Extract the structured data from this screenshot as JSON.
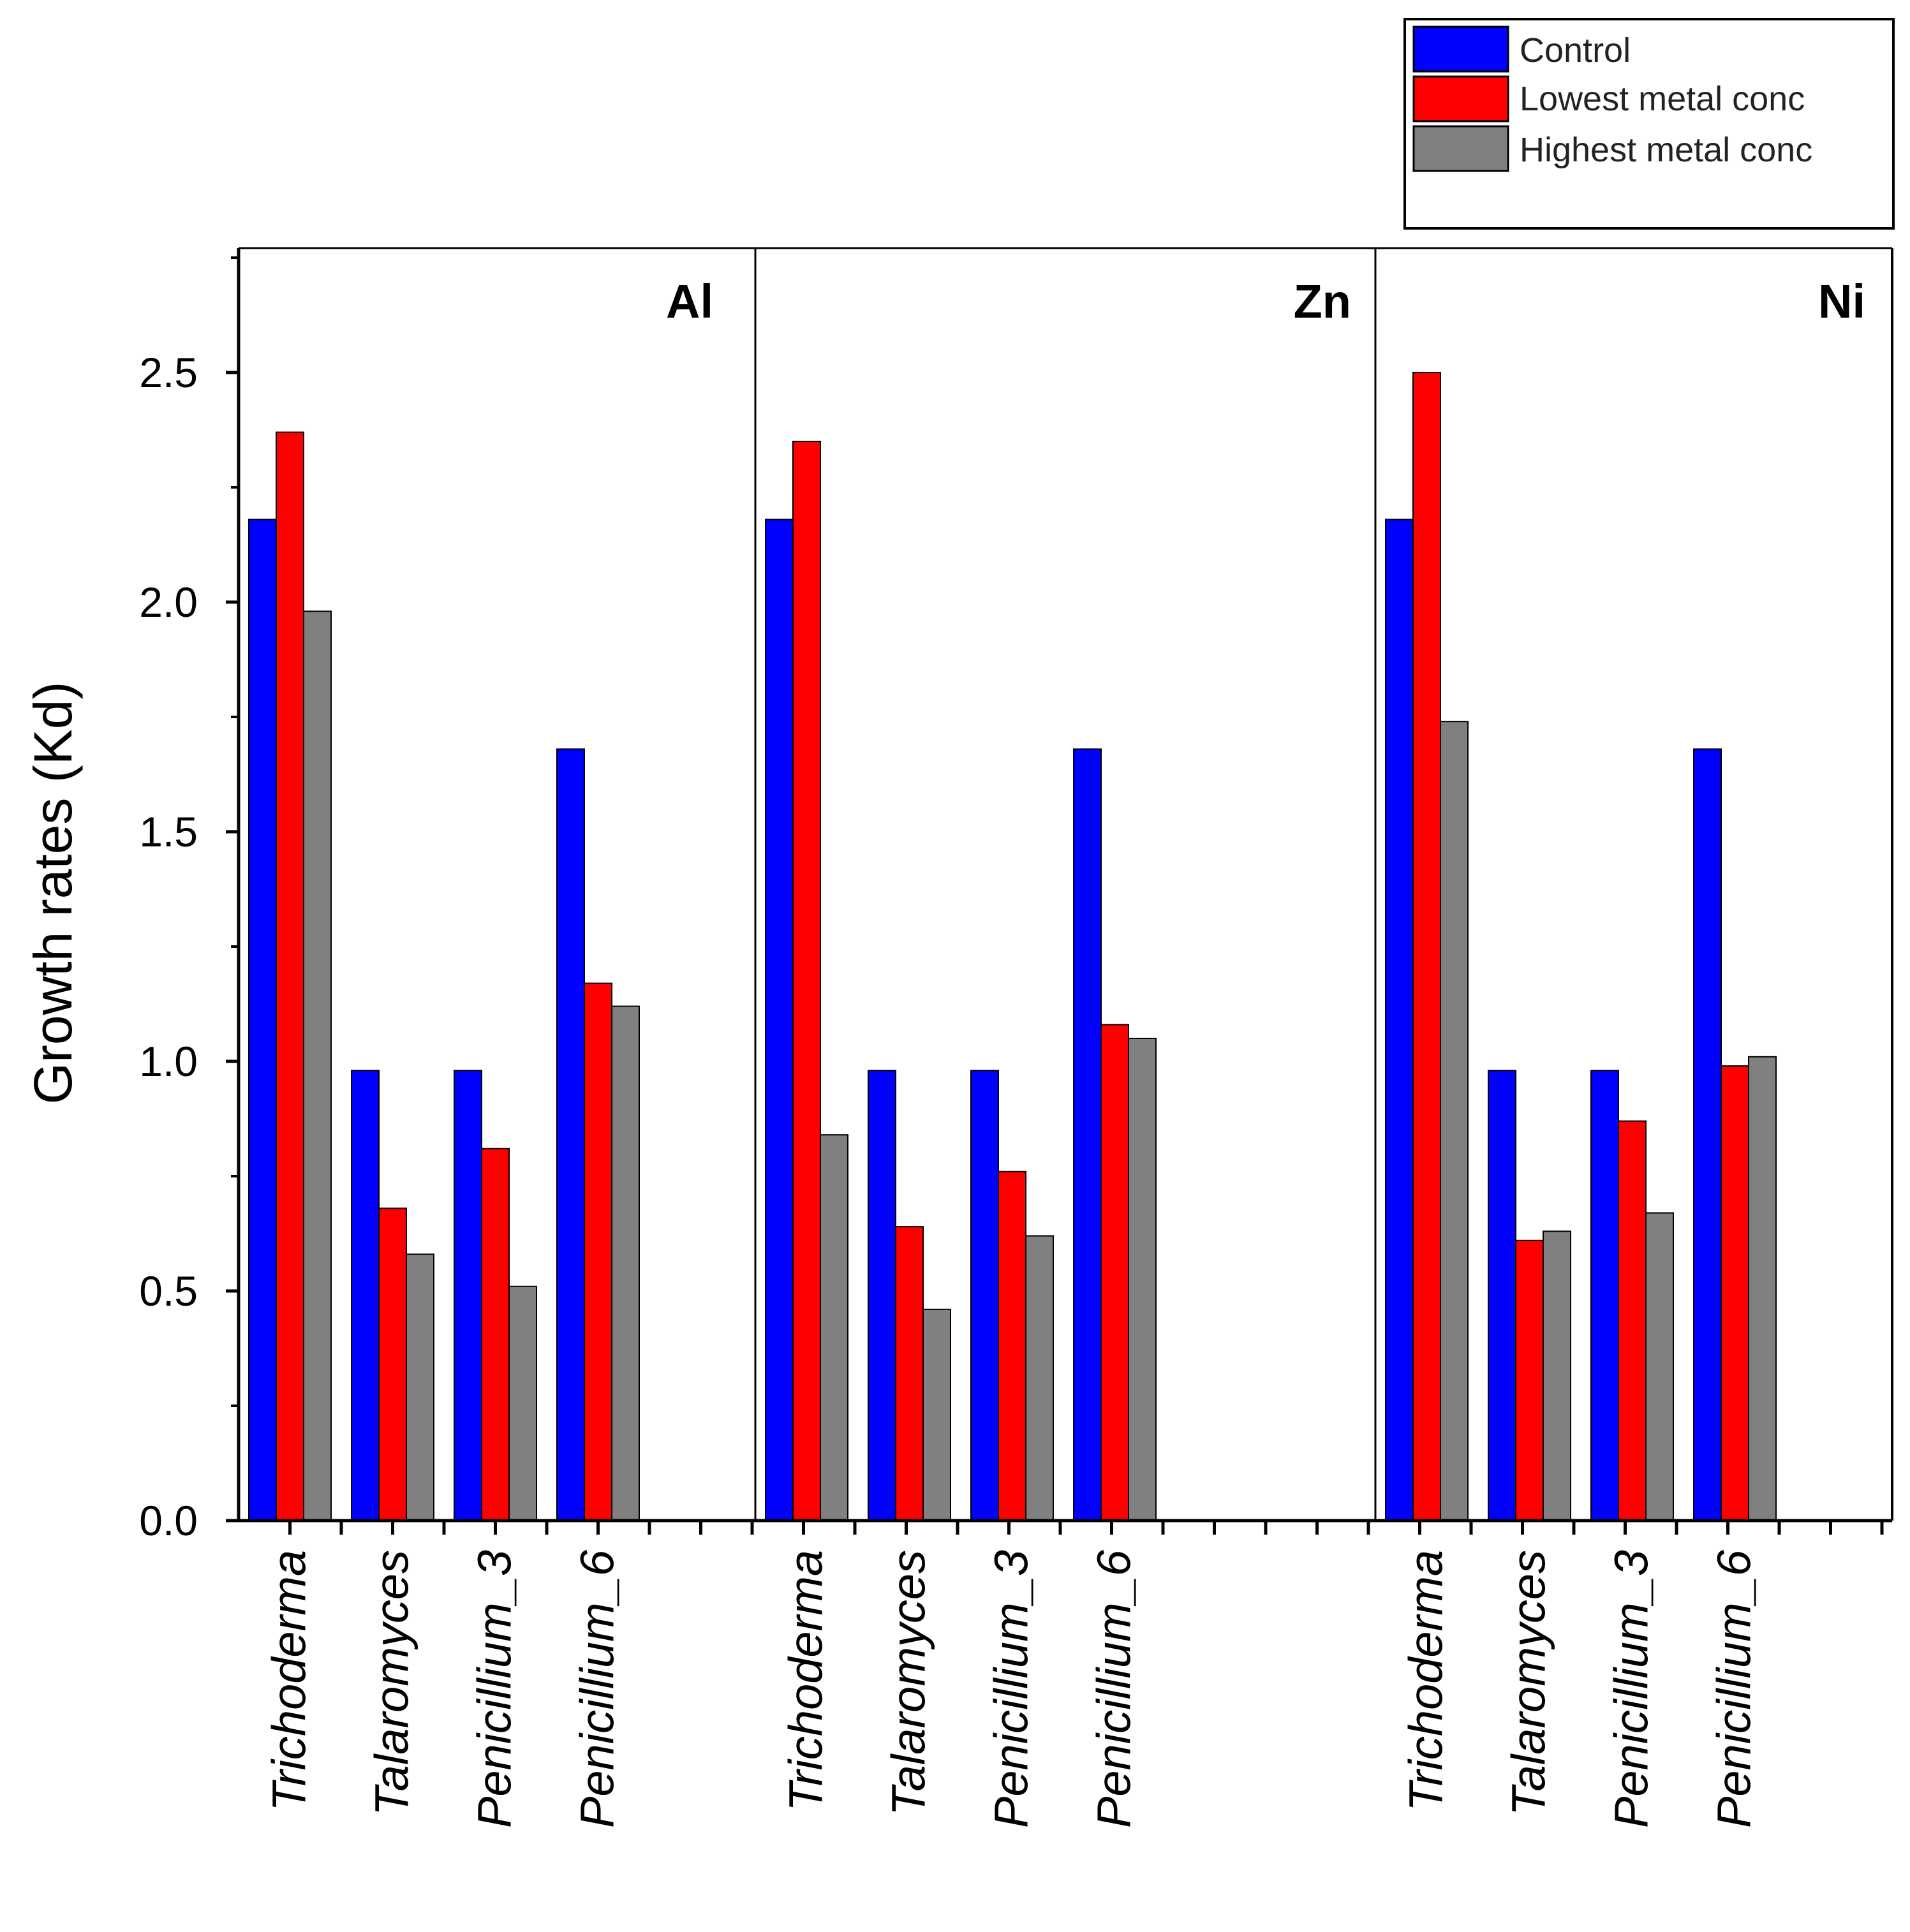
{
  "chart_data": {
    "type": "bar",
    "ylabel": "Growth rates (Kd)",
    "ylim": [
      0,
      2.75
    ],
    "yticks": [
      0.0,
      0.5,
      1.0,
      1.5,
      2.0,
      2.5
    ],
    "ytick_labels": [
      "0.0",
      "0.5",
      "1.0",
      "1.5",
      "2.0",
      "2.5"
    ],
    "grid": false,
    "legend_position": "top-right, above plot",
    "legend": [
      {
        "name": "Control",
        "color": "#0000ff"
      },
      {
        "name": "Lowest metal conc",
        "color": "#ff0000"
      },
      {
        "name": "Highest metal conc",
        "color": "#808080"
      }
    ],
    "panels": [
      {
        "label": "Al",
        "categories": [
          "Trichoderma",
          "Talaromyces",
          "Penicillium_3",
          "Penicillium_6"
        ],
        "series": [
          {
            "name": "Control",
            "values": [
              2.18,
              0.98,
              0.98,
              1.68
            ]
          },
          {
            "name": "Lowest metal conc",
            "values": [
              2.37,
              0.68,
              0.81,
              1.17
            ]
          },
          {
            "name": "Highest metal conc",
            "values": [
              1.98,
              0.58,
              0.51,
              1.12
            ]
          }
        ]
      },
      {
        "label": "Zn",
        "categories": [
          "Trichoderma",
          "Talaromyces",
          "Penicillium_3",
          "Penicillium_6"
        ],
        "series": [
          {
            "name": "Control",
            "values": [
              2.18,
              0.98,
              0.98,
              1.68
            ]
          },
          {
            "name": "Lowest metal conc",
            "values": [
              2.35,
              0.64,
              0.76,
              1.08
            ]
          },
          {
            "name": "Highest metal conc",
            "values": [
              0.84,
              0.46,
              0.62,
              1.05
            ]
          }
        ]
      },
      {
        "label": "Ni",
        "categories": [
          "Trichoderma",
          "Talaromyces",
          "Penicillium_3",
          "Penicillium_6"
        ],
        "series": [
          {
            "name": "Control",
            "values": [
              2.18,
              0.98,
              0.98,
              1.68
            ]
          },
          {
            "name": "Lowest metal conc",
            "values": [
              2.5,
              0.61,
              0.87,
              0.99
            ]
          },
          {
            "name": "Highest metal conc",
            "values": [
              1.74,
              0.63,
              0.67,
              1.01
            ]
          }
        ]
      }
    ]
  }
}
